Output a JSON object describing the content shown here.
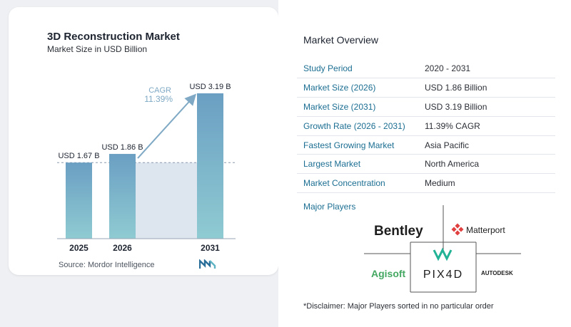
{
  "chart": {
    "title": "3D Reconstruction Market",
    "subtitle": "Market Size in USD Billion",
    "source": "Source:  Mordor Intelligence",
    "cagr_label": "CAGR",
    "cagr_value": "11.39%"
  },
  "chart_data": {
    "type": "bar",
    "title": "3D Reconstruction Market",
    "subtitle": "Market Size in USD Billion",
    "categories": [
      "2025",
      "2026",
      "2031"
    ],
    "values": [
      1.67,
      1.86,
      3.19
    ],
    "data_labels": [
      "USD 1.67 B",
      "USD 1.86 B",
      "USD 3.19 B"
    ],
    "ylim": [
      0,
      3.19
    ],
    "grid": false,
    "annotation": {
      "label": "CAGR",
      "value": "11.39%"
    }
  },
  "colors": {
    "bar_top": "#6b9fc3",
    "bar_bottom": "#8fcbd2",
    "label_blue": "#1b6e92",
    "cagr": "#7fa9c5",
    "shade": "#dde6ef"
  },
  "overview": {
    "title": "Market Overview",
    "rows": [
      {
        "key": "Study Period",
        "value": "2020 - 2031"
      },
      {
        "key": "Market Size (2026)",
        "value": "USD 1.86 Billion"
      },
      {
        "key": "Market Size (2031)",
        "value": "USD 3.19 Billion"
      },
      {
        "key": "Growth Rate (2026 - 2031)",
        "value": "11.39% CAGR"
      },
      {
        "key": "Fastest Growing Market",
        "value": "Asia Pacific"
      },
      {
        "key": "Largest Market",
        "value": "North America"
      },
      {
        "key": "Market Concentration",
        "value": "Medium"
      }
    ]
  },
  "players": {
    "title": "Major Players",
    "logos": [
      "Bentley",
      "Matterport",
      "Agisoft",
      "PIX4D",
      "AUTODESK"
    ]
  },
  "disclaimer": "*Disclaimer: Major Players sorted in no particular order"
}
